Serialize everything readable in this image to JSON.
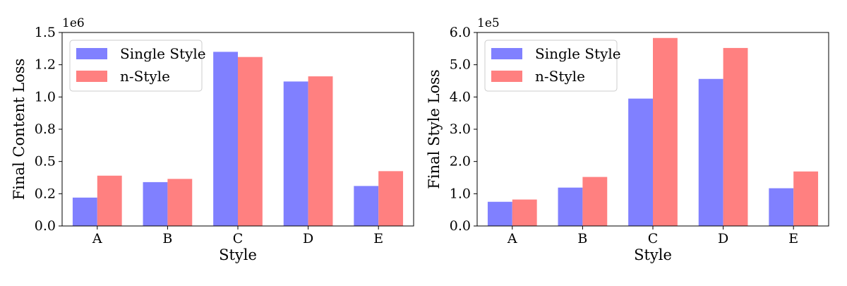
{
  "chart_data": [
    {
      "type": "bar",
      "xlabel": "Style",
      "ylabel": "Final Content Loss",
      "exponent_label": "1e6",
      "categories": [
        "A",
        "B",
        "C",
        "D",
        "E"
      ],
      "ylim": [
        0,
        1.5
      ],
      "y_ticks": [
        0,
        0.25,
        0.5,
        0.75,
        1.0,
        1.25,
        1.5
      ],
      "y_tick_labels": [
        "0.0",
        "0.2",
        "0.5",
        "0.8",
        "1.0",
        "1.2",
        "1.5"
      ],
      "legend_position": "top-left",
      "series": [
        {
          "name": "Single Style",
          "color": "#8080ff",
          "values": [
            0.22,
            0.34,
            1.35,
            1.12,
            0.31
          ]
        },
        {
          "name": "n-Style",
          "color": "#ff8080",
          "values": [
            0.39,
            0.365,
            1.31,
            1.16,
            0.425
          ]
        }
      ]
    },
    {
      "type": "bar",
      "xlabel": "Style",
      "ylabel": "Final Style Loss",
      "exponent_label": "1e5",
      "categories": [
        "A",
        "B",
        "C",
        "D",
        "E"
      ],
      "ylim": [
        0,
        6.0
      ],
      "y_ticks": [
        0,
        1,
        2,
        3,
        4,
        5,
        6
      ],
      "y_tick_labels": [
        "0.0",
        "1.0",
        "2.0",
        "3.0",
        "4.0",
        "5.0",
        "6.0"
      ],
      "legend_position": "top-left",
      "series": [
        {
          "name": "Single Style",
          "color": "#8080ff",
          "values": [
            0.75,
            1.19,
            3.95,
            4.56,
            1.17
          ]
        },
        {
          "name": "n-Style",
          "color": "#ff8080",
          "values": [
            0.82,
            1.52,
            5.83,
            5.52,
            1.69
          ]
        }
      ]
    }
  ]
}
